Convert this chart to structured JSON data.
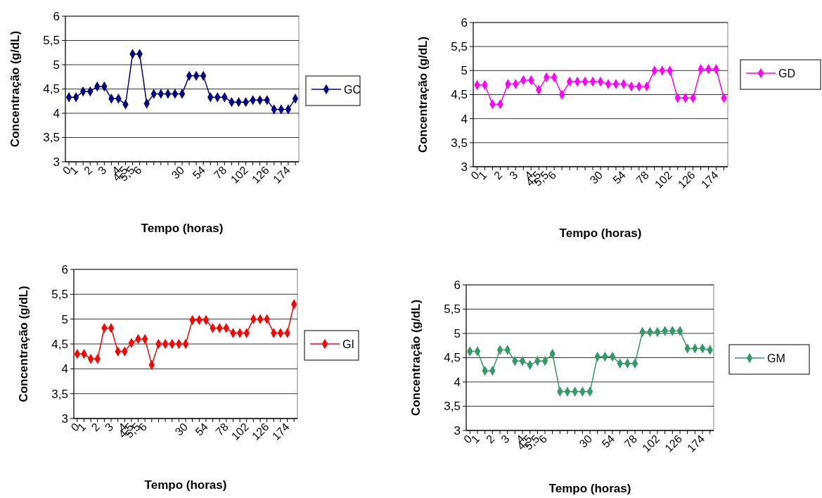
{
  "chart_data": [
    {
      "type": "line",
      "xlabel": "Tempo (horas)",
      "ylabel": "Concentração (g/dL)",
      "categories": [
        "0",
        "1",
        null,
        "2",
        null,
        "3",
        null,
        "4",
        "4,5",
        "5,5",
        "6",
        null,
        null,
        null,
        null,
        null,
        "30",
        null,
        null,
        "54",
        null,
        null,
        "78",
        null,
        null,
        "102",
        null,
        null,
        "126",
        null,
        null,
        "174",
        null
      ],
      "series": [
        {
          "name": "GC",
          "color": "#000080",
          "values": [
            4.33,
            4.33,
            4.45,
            4.45,
            4.55,
            4.55,
            4.3,
            4.3,
            4.18,
            5.22,
            5.22,
            4.2,
            4.4,
            4.4,
            4.4,
            4.4,
            4.4,
            4.77,
            4.77,
            4.77,
            4.33,
            4.33,
            4.33,
            4.23,
            4.23,
            4.23,
            4.27,
            4.27,
            4.27,
            4.08,
            4.08,
            4.08,
            4.3
          ]
        }
      ],
      "ylim": [
        3,
        6
      ],
      "yticks": [
        3,
        {
          "value": 3.5,
          "label": "3,5"
        },
        4,
        {
          "value": 4.5,
          "label": "4,5"
        },
        5,
        {
          "value": 5.5,
          "label": "5,5"
        },
        6
      ],
      "grid": "y",
      "legend": "right",
      "marker": "diamond",
      "line_style": "solid"
    },
    {
      "type": "line",
      "xlabel": "Tempo (horas)",
      "ylabel": "Concentração (g/dL)",
      "categories": [
        "0",
        "1",
        null,
        "2",
        null,
        "3",
        null,
        "4",
        "4,5",
        "5,5",
        "6",
        null,
        null,
        null,
        null,
        null,
        "30",
        null,
        null,
        "54",
        null,
        null,
        "78",
        null,
        null,
        "102",
        null,
        null,
        "126",
        null,
        null,
        "174",
        null
      ],
      "series": [
        {
          "name": "GD",
          "color": "#ff00ff",
          "values": [
            4.7,
            4.7,
            4.3,
            4.3,
            4.72,
            4.72,
            4.8,
            4.8,
            4.6,
            4.86,
            4.86,
            4.5,
            4.77,
            4.77,
            4.77,
            4.77,
            4.77,
            4.72,
            4.72,
            4.72,
            4.67,
            4.67,
            4.67,
            5.0,
            5.0,
            5.0,
            4.43,
            4.43,
            4.43,
            5.03,
            5.03,
            5.03,
            4.43
          ]
        }
      ],
      "ylim": [
        3,
        6
      ],
      "yticks": [
        3,
        {
          "value": 3.5,
          "label": "3,5"
        },
        4,
        {
          "value": 4.5,
          "label": "4,5"
        },
        5,
        {
          "value": 5.5,
          "label": "5,5"
        },
        6
      ],
      "grid": "y",
      "legend": "right",
      "marker": "diamond",
      "line_style": "solid"
    },
    {
      "type": "line",
      "xlabel": "Tempo (horas)",
      "ylabel": "Concentração (g/dL)",
      "categories": [
        "0",
        "1",
        null,
        "2",
        null,
        "3",
        null,
        "4",
        "4,5",
        "5,5",
        "6",
        null,
        null,
        null,
        null,
        null,
        "30",
        null,
        null,
        "54",
        null,
        null,
        "78",
        null,
        null,
        "102",
        null,
        null,
        "126",
        null,
        null,
        "174",
        null
      ],
      "series": [
        {
          "name": "GI",
          "color": "#ff0000",
          "values": [
            4.3,
            4.3,
            4.2,
            4.2,
            4.82,
            4.82,
            4.35,
            4.35,
            4.52,
            4.6,
            4.6,
            4.08,
            4.5,
            4.5,
            4.5,
            4.5,
            4.5,
            4.98,
            4.98,
            4.98,
            4.82,
            4.82,
            4.82,
            4.72,
            4.72,
            4.72,
            5.0,
            5.0,
            5.0,
            4.72,
            4.72,
            4.72,
            5.3
          ]
        }
      ],
      "ylim": [
        3,
        6
      ],
      "yticks": [
        3,
        {
          "value": 3.5,
          "label": "3,5"
        },
        4,
        {
          "value": 4.5,
          "label": "4,5"
        },
        5,
        {
          "value": 5.5,
          "label": "5,5"
        },
        6
      ],
      "grid": "y",
      "legend": "right",
      "marker": "diamond",
      "line_style": "solid"
    },
    {
      "type": "line",
      "xlabel": "Tempo (horas)",
      "ylabel": "Concentração (g/dL)",
      "categories": [
        "0",
        "1",
        null,
        "2",
        null,
        "3",
        null,
        "4",
        "4,5",
        "5,5",
        "6",
        null,
        null,
        null,
        null,
        null,
        "30",
        null,
        null,
        "54",
        null,
        null,
        "78",
        null,
        null,
        "102",
        null,
        null,
        "126",
        null,
        null,
        "174",
        null
      ],
      "series": [
        {
          "name": "GM",
          "color": "#339966",
          "values": [
            4.63,
            4.63,
            4.23,
            4.23,
            4.66,
            4.66,
            4.43,
            4.43,
            4.35,
            4.43,
            4.43,
            4.58,
            3.8,
            3.8,
            3.8,
            3.8,
            3.8,
            4.52,
            4.52,
            4.52,
            4.38,
            4.38,
            4.38,
            5.03,
            5.03,
            5.03,
            5.05,
            5.05,
            5.05,
            4.69,
            4.69,
            4.69,
            4.66
          ]
        }
      ],
      "ylim": [
        3,
        6
      ],
      "yticks": [
        3,
        {
          "value": 3.5,
          "label": "3,5"
        },
        4,
        {
          "value": 4.5,
          "label": "4,5"
        },
        5,
        {
          "value": 5.5,
          "label": "5,5"
        },
        6
      ],
      "grid": "y",
      "legend": "right",
      "marker": "diamond",
      "line_style": "solid"
    }
  ]
}
